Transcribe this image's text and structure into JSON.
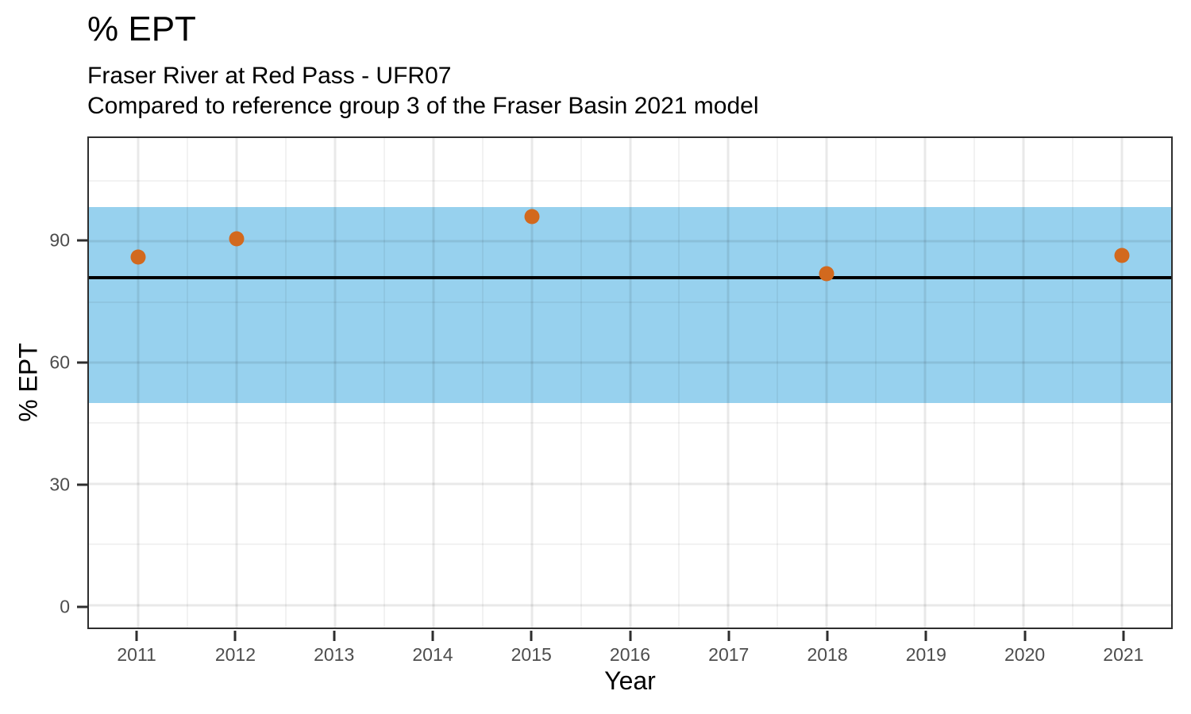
{
  "chart_data": {
    "type": "scatter",
    "title": "% EPT",
    "subtitle_line1": "Fraser River at Red Pass - UFR07",
    "subtitle_line2": "Compared to reference group 3 of the Fraser Basin 2021 model",
    "xlabel": "Year",
    "ylabel": "% EPT",
    "points": [
      {
        "x": 2011,
        "y": 86
      },
      {
        "x": 2012,
        "y": 90.5
      },
      {
        "x": 2015,
        "y": 96
      },
      {
        "x": 2018,
        "y": 82
      },
      {
        "x": 2021,
        "y": 86.5
      }
    ],
    "point_color": "#D2691E",
    "reference_band": {
      "ymin": 50,
      "ymax": 98.5,
      "color": "#97D1EE"
    },
    "reference_line": {
      "y": 81,
      "color": "#000000"
    },
    "xlim": [
      2010.5,
      2021.5
    ],
    "ylim": [
      -5.5,
      115.5
    ],
    "x_ticks": [
      2011,
      2012,
      2013,
      2014,
      2015,
      2016,
      2017,
      2018,
      2019,
      2020,
      2021
    ],
    "y_ticks": [
      0,
      30,
      60,
      90
    ],
    "x_minor": [
      2011.5,
      2012.5,
      2013.5,
      2014.5,
      2015.5,
      2016.5,
      2017.5,
      2018.5,
      2019.5,
      2020.5
    ],
    "y_minor": [
      15,
      45,
      75,
      105
    ],
    "grid": true,
    "legend_position": "none",
    "tick_label_color": "#4d4d4d",
    "panel_border_color": "#2e2e2e"
  }
}
